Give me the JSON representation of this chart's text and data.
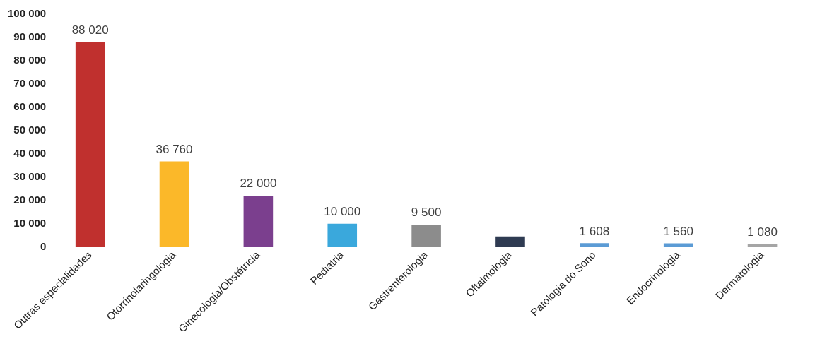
{
  "chart_data": {
    "type": "bar",
    "categories": [
      "Outras especialidades",
      "Otorrinolaringologia",
      "Ginecologia/Obstétricia",
      "Pediatria",
      "Gastrenterologia",
      "Oftalmologia",
      "Patologia do Sono",
      "Endocrinologia",
      "Dermatologia"
    ],
    "values": [
      88020,
      36760,
      22000,
      10000,
      9500,
      4500,
      1608,
      1560,
      1080
    ],
    "colors": [
      "#c0302e",
      "#fbb829",
      "#7b3f8e",
      "#3aa8dc",
      "#8c8c8c",
      "#2f3b52",
      "#5b9bd5",
      "#5b9bd5",
      "#a5a5a5"
    ],
    "value_labels": [
      "88 020",
      "36 760",
      "22 000",
      "10 000",
      "9 500",
      null,
      "1 608",
      "1 560",
      "1 080"
    ],
    "ylim": [
      0,
      100000
    ],
    "yticks": [
      {
        "value": 0,
        "label": "0"
      },
      {
        "value": 10000,
        "label": "10 000"
      },
      {
        "value": 20000,
        "label": "20 000"
      },
      {
        "value": 30000,
        "label": "30 000"
      },
      {
        "value": 40000,
        "label": "40 000"
      },
      {
        "value": 50000,
        "label": "50 000"
      },
      {
        "value": 60000,
        "label": "60 000"
      },
      {
        "value": 70000,
        "label": "70 000"
      },
      {
        "value": 80000,
        "label": "80 000"
      },
      {
        "value": 90000,
        "label": "90 000"
      },
      {
        "value": 100000,
        "label": "100 000"
      }
    ],
    "grid": false,
    "legend": false
  }
}
